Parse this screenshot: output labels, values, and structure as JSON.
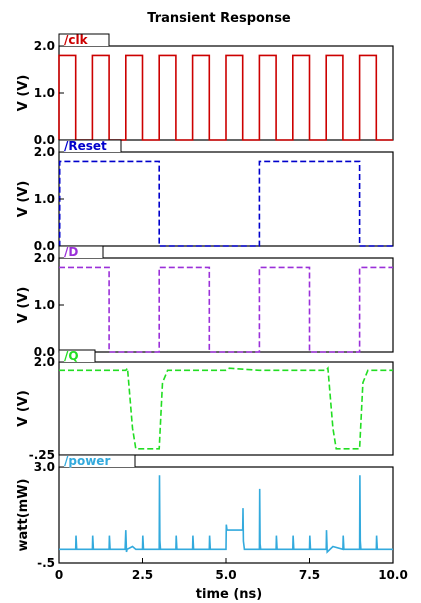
{
  "chart_data": {
    "type": "line",
    "title": "Transient Response",
    "xlabel": "time (ns)",
    "xlim": [
      0,
      10.0
    ],
    "x_ticks": [
      "0",
      "2.5",
      "5.0",
      "7.5",
      "10.0"
    ],
    "x_tick_values": [
      0,
      2.5,
      5.0,
      7.5,
      10.0
    ],
    "grid": false,
    "panels": [
      {
        "name": "/clk",
        "color": "#cc0000",
        "dashed": false,
        "ylabel": "V (V)",
        "ylim": [
          0,
          2.0
        ],
        "y_ticks": [
          "2.0",
          "1.0",
          "0.0"
        ],
        "y_tick_values": [
          2.0,
          1.0,
          0.0
        ],
        "x": [
          0,
          0,
          0.02,
          0.02,
          0.5,
          0.5,
          1.0,
          1.0,
          1.5,
          1.5,
          2.0,
          2.0,
          2.5,
          2.5,
          3.0,
          3.0,
          3.5,
          3.5,
          4.0,
          4.0,
          4.5,
          4.5,
          5.0,
          5.0,
          5.5,
          5.5,
          6.0,
          6.0,
          6.5,
          6.5,
          7.0,
          7.0,
          7.5,
          7.5,
          8.0,
          8.0,
          8.5,
          8.5,
          9.0,
          9.0,
          9.5,
          9.5,
          10.0
        ],
        "y": [
          0,
          1.8,
          1.8,
          1.8,
          1.8,
          0,
          0,
          1.8,
          1.8,
          0,
          0,
          1.8,
          1.8,
          0,
          0,
          1.8,
          1.8,
          0,
          0,
          1.8,
          1.8,
          0,
          0,
          1.8,
          1.8,
          0,
          0,
          1.8,
          1.8,
          0,
          0,
          1.8,
          1.8,
          0,
          0,
          1.8,
          1.8,
          0,
          0,
          1.8,
          1.8,
          0,
          0
        ]
      },
      {
        "name": "/Reset",
        "color": "#0000cc",
        "dashed": true,
        "ylabel": "V (V)",
        "ylim": [
          0,
          2.0
        ],
        "y_ticks": [
          "2.0",
          "1.0",
          "0.0"
        ],
        "y_tick_values": [
          2.0,
          1.0,
          0.0
        ],
        "x": [
          0,
          0.02,
          0.02,
          3.0,
          3.0,
          6.0,
          6.0,
          9.0,
          9.0,
          10.0
        ],
        "y": [
          0,
          0,
          1.8,
          1.8,
          0,
          0,
          1.8,
          1.8,
          0,
          0
        ]
      },
      {
        "name": "/D",
        "color": "#9b30d9",
        "dashed": true,
        "ylabel": "V (V)",
        "ylim": [
          0,
          2.0
        ],
        "y_ticks": [
          "2.0",
          "1.0",
          "0.0"
        ],
        "y_tick_values": [
          2.0,
          1.0,
          0.0
        ],
        "x": [
          0,
          1.5,
          1.5,
          3.0,
          3.0,
          4.5,
          4.5,
          6.0,
          6.0,
          7.5,
          7.5,
          9.0,
          9.0,
          10.0
        ],
        "y": [
          1.8,
          1.8,
          0,
          0,
          1.8,
          1.8,
          0,
          0,
          1.8,
          1.8,
          0,
          0,
          1.8,
          1.8
        ]
      },
      {
        "name": "/Q",
        "color": "#22dd22",
        "dashed": true,
        "ylabel": "V (V)",
        "ylim": [
          -0.25,
          2.0
        ],
        "y_ticks": [
          "2.0",
          "-.25"
        ],
        "y_tick_values": [
          2.0,
          -0.25
        ],
        "x": [
          0,
          2.0,
          2.05,
          2.2,
          2.3,
          3.0,
          3.1,
          3.25,
          5.0,
          5.1,
          6.0,
          8.0,
          8.05,
          8.2,
          8.3,
          9.0,
          9.1,
          9.25,
          10.0
        ],
        "y": [
          1.8,
          1.8,
          1.85,
          0.4,
          -0.1,
          -0.1,
          1.5,
          1.8,
          1.8,
          1.85,
          1.8,
          1.8,
          1.85,
          0.4,
          -0.1,
          -0.1,
          1.5,
          1.8,
          1.8
        ]
      },
      {
        "name": "/power",
        "color": "#33aadd",
        "dashed": false,
        "ylabel": "watt(mW)",
        "ylim": [
          -0.5,
          3.0
        ],
        "y_ticks": [
          "3.0",
          "-.5"
        ],
        "y_tick_values": [
          3.0,
          -0.5
        ],
        "x": [
          0,
          0.5,
          0.51,
          0.53,
          1.0,
          1.01,
          1.03,
          1.5,
          1.51,
          1.53,
          1.98,
          2.0,
          2.02,
          2.04,
          2.2,
          2.3,
          2.5,
          2.51,
          2.53,
          3.0,
          3.01,
          3.02,
          3.04,
          3.2,
          3.5,
          3.51,
          3.53,
          4.0,
          4.01,
          4.03,
          4.5,
          4.51,
          4.53,
          5.0,
          5.01,
          5.03,
          5.2,
          5.5,
          5.51,
          5.52,
          5.55,
          6.0,
          6.01,
          6.02,
          6.04,
          6.5,
          6.51,
          6.53,
          7.0,
          7.01,
          7.03,
          7.5,
          7.51,
          7.53,
          8.0,
          8.01,
          8.03,
          8.2,
          8.5,
          8.51,
          8.53,
          9.0,
          9.01,
          9.02,
          9.04,
          9.2,
          9.5,
          9.51,
          9.53,
          10.0
        ],
        "y": [
          0,
          0,
          0.5,
          0,
          0,
          0.5,
          0,
          0,
          0.5,
          0,
          0,
          0.7,
          -0.1,
          0,
          0.1,
          0,
          0,
          0.5,
          0,
          0,
          2.7,
          0.3,
          0,
          0,
          0,
          0.5,
          0,
          0,
          0.5,
          0,
          0,
          0.5,
          0,
          0,
          0.9,
          0.7,
          0.7,
          0.7,
          1.5,
          0.3,
          0,
          0,
          2.2,
          0.2,
          0,
          0,
          0.5,
          0,
          0,
          0.5,
          0,
          0,
          0.5,
          0,
          0,
          0.7,
          -0.1,
          0.1,
          0,
          0.5,
          0,
          0,
          2.7,
          0.3,
          0,
          0,
          0,
          0.5,
          0,
          0
        ]
      }
    ]
  }
}
